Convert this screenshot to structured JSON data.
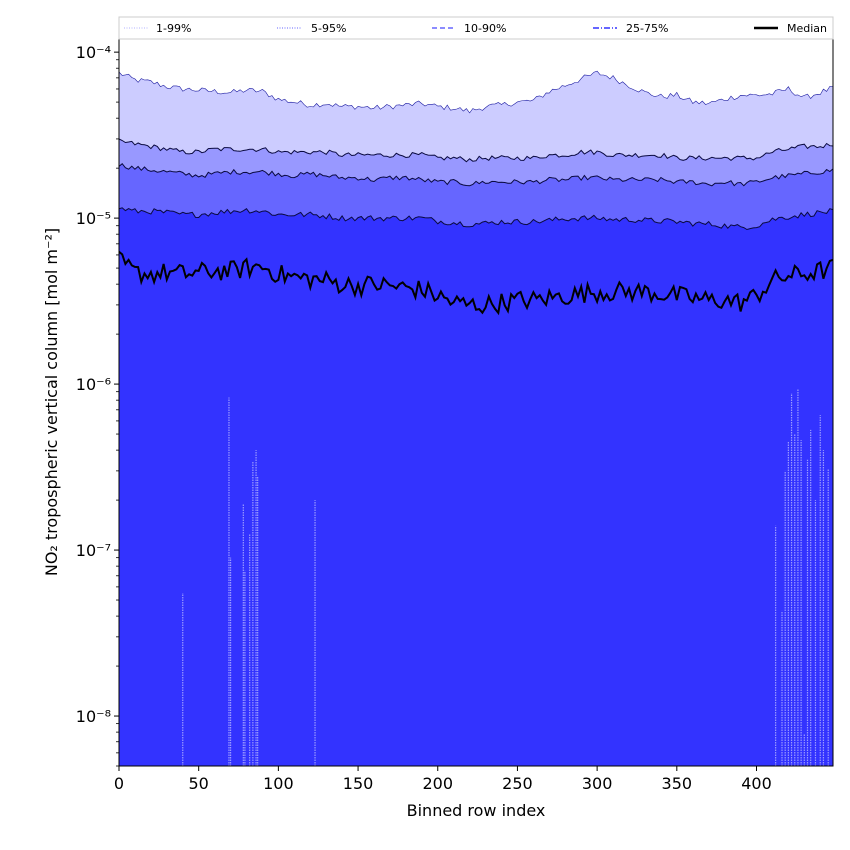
{
  "chart_data": {
    "type": "area",
    "title": "",
    "xlabel": "Binned row index",
    "ylabel": "NO₂ tropospheric vertical column [mol m⁻²]",
    "xscale": "linear",
    "yscale": "log",
    "xlim": [
      0,
      448
    ],
    "ylim": [
      5e-09,
      0.00012
    ],
    "xticks": [
      0,
      50,
      100,
      150,
      200,
      250,
      300,
      350,
      400
    ],
    "yticks": [
      1e-08,
      1e-07,
      1e-06,
      1e-05,
      0.0001
    ],
    "ytick_labels": [
      "10⁻⁸",
      "10⁻⁷",
      "10⁻⁶",
      "10⁻⁵",
      "10⁻⁴"
    ],
    "grid": false,
    "legend_position": "top, above plot",
    "x_anchor": [
      0,
      10,
      20,
      30,
      40,
      50,
      60,
      70,
      80,
      90,
      100,
      110,
      120,
      130,
      140,
      150,
      160,
      170,
      180,
      190,
      200,
      210,
      220,
      230,
      240,
      250,
      260,
      270,
      280,
      290,
      300,
      310,
      320,
      330,
      340,
      350,
      360,
      370,
      380,
      390,
      400,
      410,
      420,
      430,
      440,
      448
    ],
    "series": [
      {
        "name": "1-99%",
        "role": "lower",
        "color": "#ccccff",
        "values": [
          5e-09,
          5e-09,
          5e-09,
          5e-09,
          5e-09,
          5e-09,
          5e-09,
          5e-09,
          5e-09,
          5e-09,
          5e-09,
          5e-09,
          5e-09,
          5e-09,
          5e-09,
          5e-09,
          5e-09,
          5e-09,
          5e-09,
          5e-09,
          5e-09,
          5e-09,
          5e-09,
          5e-09,
          5e-09,
          5e-09,
          5e-09,
          5e-09,
          5e-09,
          5e-09,
          5e-09,
          5e-09,
          5e-09,
          5e-09,
          5e-09,
          5e-09,
          5e-09,
          5e-09,
          5e-09,
          5e-09,
          5e-09,
          5e-09,
          5e-09,
          5e-09,
          5e-09,
          5e-09
        ]
      },
      {
        "name": "1-99%",
        "role": "upper",
        "color": "#ccccff",
        "values": [
          7.5e-05,
          6.8e-05,
          6.6e-05,
          6.2e-05,
          6e-05,
          5.9e-05,
          5.8e-05,
          5.7e-05,
          5.9e-05,
          5.8e-05,
          5.2e-05,
          5e-05,
          4.8e-05,
          4.9e-05,
          4.7e-05,
          4.7e-05,
          4.6e-05,
          4.7e-05,
          4.8e-05,
          4.9e-05,
          4.7e-05,
          4.6e-05,
          4.4e-05,
          4.7e-05,
          4.8e-05,
          5e-05,
          5.1e-05,
          5.8e-05,
          6.3e-05,
          6.9e-05,
          7.5e-05,
          7e-05,
          6.3e-05,
          5.7e-05,
          5.4e-05,
          5.5e-05,
          5e-05,
          4.9e-05,
          5.2e-05,
          5.5e-05,
          5.5e-05,
          5.6e-05,
          6e-05,
          5.3e-05,
          5.7e-05,
          6.1e-05
        ]
      },
      {
        "name": "5-95%",
        "role": "upper",
        "color": "#9898ff",
        "values": [
          2.9e-05,
          2.8e-05,
          2.7e-05,
          2.6e-05,
          2.5e-05,
          2.5e-05,
          2.6e-05,
          2.6e-05,
          2.6e-05,
          2.6e-05,
          2.5e-05,
          2.5e-05,
          2.5e-05,
          2.5e-05,
          2.4e-05,
          2.4e-05,
          2.4e-05,
          2.4e-05,
          2.4e-05,
          2.4e-05,
          2.3e-05,
          2.3e-05,
          2.25e-05,
          2.3e-05,
          2.3e-05,
          2.3e-05,
          2.3e-05,
          2.4e-05,
          2.4e-05,
          2.5e-05,
          2.5e-05,
          2.4e-05,
          2.4e-05,
          2.4e-05,
          2.4e-05,
          2.3e-05,
          2.3e-05,
          2.3e-05,
          2.3e-05,
          2.3e-05,
          2.3e-05,
          2.5e-05,
          2.6e-05,
          2.7e-05,
          2.7e-05,
          2.8e-05
        ]
      },
      {
        "name": "10-90%",
        "role": "upper",
        "color": "#6666ff",
        "values": [
          2.1e-05,
          2e-05,
          1.95e-05,
          1.9e-05,
          1.85e-05,
          1.8e-05,
          1.85e-05,
          1.9e-05,
          1.9e-05,
          1.9e-05,
          1.85e-05,
          1.8e-05,
          1.85e-05,
          1.8e-05,
          1.75e-05,
          1.75e-05,
          1.7e-05,
          1.75e-05,
          1.75e-05,
          1.7e-05,
          1.65e-05,
          1.65e-05,
          1.6e-05,
          1.65e-05,
          1.65e-05,
          1.65e-05,
          1.65e-05,
          1.7e-05,
          1.7e-05,
          1.75e-05,
          1.75e-05,
          1.7e-05,
          1.7e-05,
          1.7e-05,
          1.7e-05,
          1.65e-05,
          1.65e-05,
          1.6e-05,
          1.65e-05,
          1.6e-05,
          1.65e-05,
          1.75e-05,
          1.8e-05,
          1.85e-05,
          1.9e-05,
          1.95e-05
        ]
      },
      {
        "name": "25-75%",
        "role": "upper",
        "color": "#3333ff",
        "values": [
          1.15e-05,
          1.1e-05,
          1.1e-05,
          1.08e-05,
          1.05e-05,
          1.05e-05,
          1.08e-05,
          1.1e-05,
          1.12e-05,
          1.1e-05,
          1.05e-05,
          1.05e-05,
          1.05e-05,
          1.03e-05,
          1e-05,
          1e-05,
          1e-05,
          1e-05,
          1e-05,
          1e-05,
          9.6e-06,
          9.4e-06,
          9.2e-06,
          9.3e-06,
          9.5e-06,
          9.5e-06,
          9.5e-06,
          9.7e-06,
          9.9e-06,
          1e-05,
          1e-05,
          9.8e-06,
          9.8e-06,
          9.7e-06,
          9.6e-06,
          9.5e-06,
          9.3e-06,
          9.2e-06,
          9e-06,
          8.8e-06,
          9e-06,
          9.8e-06,
          1.02e-05,
          1.05e-05,
          1.08e-05,
          1.1e-05
        ]
      },
      {
        "name": "Median",
        "role": "line",
        "color": "#000000",
        "values": [
          5.5e-06,
          4.7e-06,
          4.6e-06,
          4.7e-06,
          4.6e-06,
          4.7e-06,
          4.8e-06,
          4.8e-06,
          5e-06,
          5.1e-06,
          4.6e-06,
          4.4e-06,
          4.3e-06,
          4.2e-06,
          4e-06,
          3.9e-06,
          4e-06,
          3.9e-06,
          3.8e-06,
          3.7e-06,
          3.4e-06,
          3.1e-06,
          3e-06,
          3e-06,
          3.1e-06,
          3.2e-06,
          3.2e-06,
          3.3e-06,
          3.4e-06,
          3.5e-06,
          3.6e-06,
          3.6e-06,
          3.6e-06,
          3.6e-06,
          3.5e-06,
          3.4e-06,
          3.3e-06,
          3.2e-06,
          3.2e-06,
          3.1e-06,
          3.4e-06,
          4.2e-06,
          4.5e-06,
          4.6e-06,
          4.8e-06,
          5e-06
        ]
      }
    ],
    "spikes": [
      {
        "x": 40,
        "y": 5.5e-08
      },
      {
        "x": 69,
        "y": 8.3e-07
      },
      {
        "x": 70,
        "y": 9e-08
      },
      {
        "x": 78,
        "y": 1.9e-07
      },
      {
        "x": 79,
        "y": 7.5e-08
      },
      {
        "x": 82,
        "y": 1.25e-07
      },
      {
        "x": 84,
        "y": 3.4e-07
      },
      {
        "x": 86,
        "y": 4e-07
      },
      {
        "x": 87,
        "y": 2.8e-07
      },
      {
        "x": 123,
        "y": 2e-07
      },
      {
        "x": 412,
        "y": 1.4e-07
      },
      {
        "x": 416,
        "y": 4.3e-08
      },
      {
        "x": 418,
        "y": 3e-07
      },
      {
        "x": 420,
        "y": 4.5e-07
      },
      {
        "x": 422,
        "y": 8.8e-07
      },
      {
        "x": 424,
        "y": 5e-07
      },
      {
        "x": 426,
        "y": 9.4e-07
      },
      {
        "x": 428,
        "y": 4.6e-07
      },
      {
        "x": 430,
        "y": 7.8e-09
      },
      {
        "x": 432,
        "y": 3.5e-07
      },
      {
        "x": 434,
        "y": 5.3e-07
      },
      {
        "x": 437,
        "y": 2e-07
      },
      {
        "x": 440,
        "y": 6.5e-07
      },
      {
        "x": 442,
        "y": 4e-07
      },
      {
        "x": 445,
        "y": 3.1e-07
      }
    ],
    "legend": [
      {
        "label": "1-99%",
        "style": "dotted",
        "color": "#ccccff"
      },
      {
        "label": "5-95%",
        "style": "dotted",
        "color": "#9898ff"
      },
      {
        "label": "10-90%",
        "style": "dashed",
        "color": "#6666ff"
      },
      {
        "label": "25-75%",
        "style": "dashdot",
        "color": "#3333ff"
      },
      {
        "label": "Median",
        "style": "solid",
        "color": "#000000"
      }
    ]
  }
}
